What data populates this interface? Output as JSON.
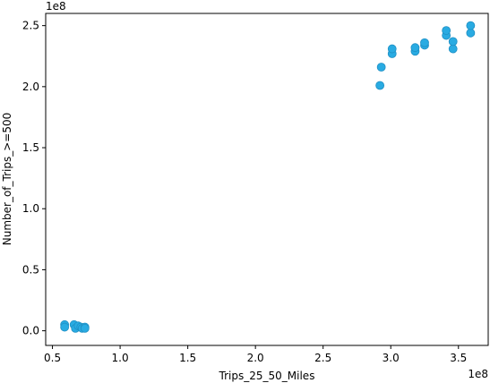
{
  "chart_data": {
    "type": "scatter",
    "xlabel": "Trips_25_50_Miles",
    "ylabel": "Number_of_Trips_>=500",
    "x_offset_label": "1e8",
    "y_offset_label": "1e8",
    "xlim": [
      0.45,
      3.72
    ],
    "ylim": [
      -0.12,
      2.6
    ],
    "x_ticks": [
      0.5,
      1.0,
      1.5,
      2.0,
      2.5,
      3.0,
      3.5
    ],
    "x_tick_labels": [
      "0.5",
      "1.0",
      "1.5",
      "2.0",
      "2.5",
      "3.0",
      "3.5"
    ],
    "y_ticks": [
      0.0,
      0.5,
      1.0,
      1.5,
      2.0,
      2.5
    ],
    "y_tick_labels": [
      "0.0",
      "0.5",
      "1.0",
      "1.5",
      "2.0",
      "2.5"
    ],
    "grid": false,
    "marker_color": "#29abe2",
    "marker_edge_color": "#1f8fc4",
    "points": [
      {
        "x": 0.59,
        "y": 0.05
      },
      {
        "x": 0.59,
        "y": 0.03
      },
      {
        "x": 0.66,
        "y": 0.05
      },
      {
        "x": 0.67,
        "y": 0.02
      },
      {
        "x": 0.69,
        "y": 0.04
      },
      {
        "x": 0.71,
        "y": 0.03
      },
      {
        "x": 0.72,
        "y": 0.02
      },
      {
        "x": 0.74,
        "y": 0.03
      },
      {
        "x": 0.74,
        "y": 0.02
      },
      {
        "x": 2.92,
        "y": 2.01
      },
      {
        "x": 2.93,
        "y": 2.16
      },
      {
        "x": 3.01,
        "y": 2.27
      },
      {
        "x": 3.01,
        "y": 2.31
      },
      {
        "x": 3.18,
        "y": 2.29
      },
      {
        "x": 3.18,
        "y": 2.32
      },
      {
        "x": 3.25,
        "y": 2.34
      },
      {
        "x": 3.25,
        "y": 2.36
      },
      {
        "x": 3.41,
        "y": 2.42
      },
      {
        "x": 3.41,
        "y": 2.46
      },
      {
        "x": 3.46,
        "y": 2.31
      },
      {
        "x": 3.46,
        "y": 2.37
      },
      {
        "x": 3.59,
        "y": 2.44
      },
      {
        "x": 3.59,
        "y": 2.5
      }
    ]
  }
}
